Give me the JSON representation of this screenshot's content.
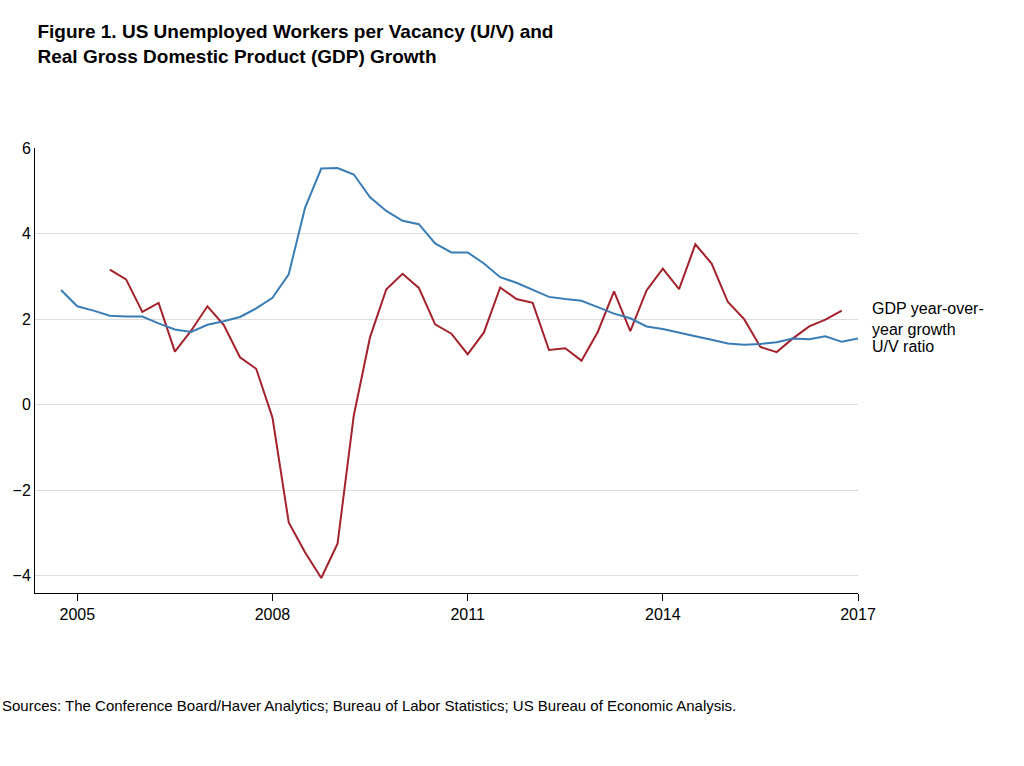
{
  "chart_data": {
    "type": "line",
    "title": "Figure 1. US Unemployed Workers per Vacancy (U/V) and\nReal Gross Domestic Product (GDP) Growth",
    "note": "Sources: The Conference Board/Haver Analytics; Bureau of Labor Statistics; US Bureau of Economic Analysis.",
    "xlim": [
      2004.35,
      2017
    ],
    "xticks": [
      2005,
      2008,
      2011,
      2014,
      2017
    ],
    "ylim": [
      -4.4,
      6
    ],
    "yticks": [
      {
        "value": -4,
        "label": "−4"
      },
      {
        "value": -2,
        "label": "−2"
      },
      0,
      2,
      4,
      6
    ],
    "grid": true,
    "series": [
      {
        "name": "GDP year-over-\nyear growth",
        "color": "#a3222c",
        "x": [
          2005.5,
          2005.75,
          2006.0,
          2006.25,
          2006.5,
          2006.75,
          2007.0,
          2007.25,
          2007.5,
          2007.75,
          2008.0,
          2008.25,
          2008.5,
          2008.75,
          2009.0,
          2009.25,
          2009.5,
          2009.75,
          2010.0,
          2010.25,
          2010.5,
          2010.75,
          2011.0,
          2011.25,
          2011.5,
          2011.75,
          2012.0,
          2012.25,
          2012.5,
          2012.75,
          2013.0,
          2013.25,
          2013.5,
          2013.75,
          2014.0,
          2014.25,
          2014.5,
          2014.75,
          2015.0,
          2015.25,
          2015.5,
          2015.75,
          2016.0,
          2016.25,
          2016.5,
          2016.75
        ],
        "values": [
          3.16,
          2.93,
          2.17,
          2.38,
          1.24,
          1.73,
          2.3,
          1.87,
          1.11,
          0.84,
          -0.3,
          -2.75,
          -3.45,
          -4.05,
          -3.25,
          -0.25,
          1.58,
          2.7,
          3.06,
          2.73,
          1.88,
          1.66,
          1.18,
          1.69,
          2.74,
          2.47,
          2.38,
          1.28,
          1.32,
          1.03,
          1.7,
          2.65,
          1.72,
          2.67,
          3.18,
          2.7,
          3.75,
          3.3,
          2.4,
          2.0,
          1.35,
          1.23,
          1.55,
          1.83,
          1.99,
          2.2
        ]
      },
      {
        "name": "U/V ratio",
        "color": "#3a7db5",
        "x": [
          2004.75,
          2005.0,
          2005.25,
          2005.5,
          2005.75,
          2006.0,
          2006.25,
          2006.5,
          2006.75,
          2007.0,
          2007.25,
          2007.5,
          2007.75,
          2008.0,
          2008.25,
          2008.5,
          2008.75,
          2009.0,
          2009.25,
          2009.5,
          2009.75,
          2010.0,
          2010.25,
          2010.5,
          2010.75,
          2011.0,
          2011.25,
          2011.5,
          2011.75,
          2012.0,
          2012.25,
          2012.5,
          2012.75,
          2013.0,
          2013.25,
          2013.5,
          2013.75,
          2014.0,
          2014.25,
          2014.5,
          2014.75,
          2015.0,
          2015.25,
          2015.5,
          2015.75,
          2016.0,
          2016.25,
          2016.5,
          2016.75,
          2017.0
        ],
        "values": [
          2.68,
          2.3,
          2.2,
          2.08,
          2.06,
          2.06,
          1.9,
          1.76,
          1.7,
          1.87,
          1.95,
          2.05,
          2.25,
          2.5,
          3.05,
          4.6,
          5.52,
          5.53,
          5.38,
          4.85,
          4.53,
          4.3,
          4.22,
          3.77,
          3.56,
          3.56,
          3.3,
          2.98,
          2.85,
          2.68,
          2.52,
          2.47,
          2.43,
          2.28,
          2.13,
          2.02,
          1.83,
          1.77,
          1.68,
          1.6,
          1.52,
          1.43,
          1.4,
          1.42,
          1.46,
          1.55,
          1.53,
          1.6,
          1.47,
          1.55
        ]
      }
    ]
  }
}
